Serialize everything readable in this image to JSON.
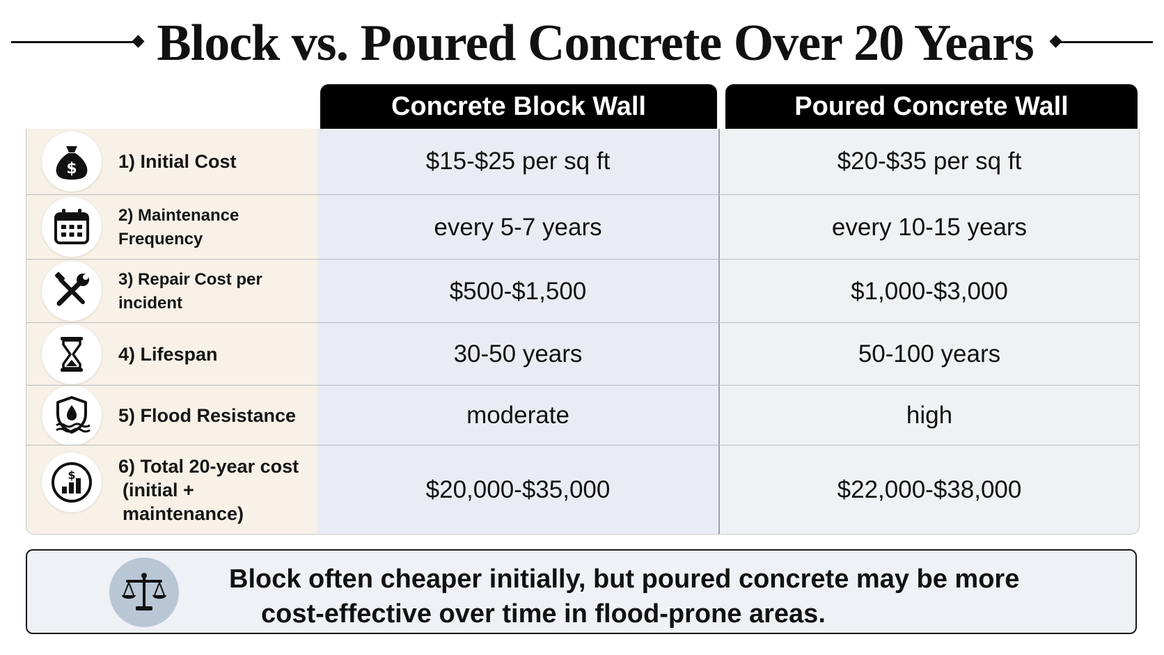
{
  "title": "Block vs. Poured Concrete Over 20 Years",
  "columns": {
    "block": "Concrete Block Wall",
    "poured": "Poured Concrete Wall"
  },
  "rows": [
    {
      "label": "1) Initial Cost",
      "sub": "",
      "icon": "money-bag-icon",
      "block": "$15-$25 per sq ft",
      "poured": "$20-$35 per sq ft"
    },
    {
      "label": "2) Maintenance Frequency",
      "sub": "",
      "icon": "calendar-icon",
      "block": "every 5-7 years",
      "poured": "every 10-15 years"
    },
    {
      "label": "3) Repair Cost per incident",
      "sub": "",
      "icon": "tools-icon",
      "block": "$500-$1,500",
      "poured": "$1,000-$3,000"
    },
    {
      "label": "4) Lifespan",
      "sub": "",
      "icon": "hourglass-icon",
      "block": "30-50 years",
      "poured": "50-100 years"
    },
    {
      "label": "5) Flood Resistance",
      "sub": "",
      "icon": "flood-shield-icon",
      "block": "moderate",
      "poured": "high"
    },
    {
      "label": "6) Total 20-year cost",
      "sub": "(initial + maintenance)",
      "icon": "cost-chart-icon",
      "block": "$20,000-$35,000",
      "poured": "$22,000-$38,000"
    }
  ],
  "summary": {
    "line1": "Block often cheaper initially, but poured concrete may be more",
    "line2": "cost-effective over time in flood-prone areas.",
    "icon": "balance-scale-icon"
  }
}
